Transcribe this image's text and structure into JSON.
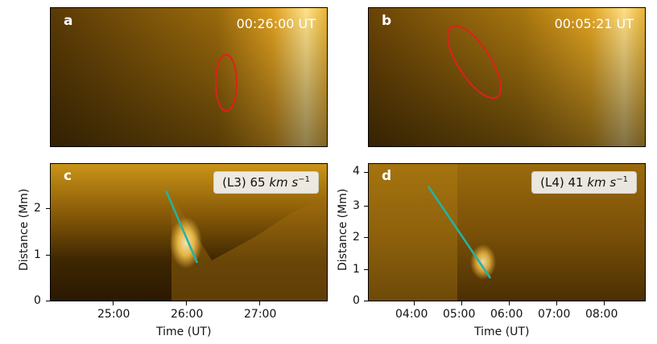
{
  "panels": {
    "a": {
      "letter": "a",
      "timestamp": "00:26:00 UT"
    },
    "b": {
      "letter": "b",
      "timestamp": "00:05:21 UT"
    },
    "c": {
      "letter": "c",
      "speed_label": "(L3) 65",
      "speed_unit": "km s",
      "speed_exp": "−1",
      "yticks": [
        "0",
        "1",
        "2"
      ],
      "xticks": [
        "25:00",
        "26:00",
        "27:00"
      ],
      "ylabel": "Distance (Mm)",
      "xlabel": "Time (UT)"
    },
    "d": {
      "letter": "d",
      "speed_label": "(L4) 41",
      "speed_unit": "km s",
      "speed_exp": "−1",
      "yticks": [
        "0",
        "1",
        "2",
        "3",
        "4"
      ],
      "xticks": [
        "04:00",
        "05:00",
        "06:00",
        "07:00",
        "08:00"
      ],
      "ylabel": "Distance (Mm)",
      "xlabel": "Time (UT)"
    }
  },
  "colors": {
    "ellipse": "#e0201a",
    "fit_line": "#22b3a6",
    "image_dark": "#2a1800",
    "image_bright": "#f3b321"
  }
}
